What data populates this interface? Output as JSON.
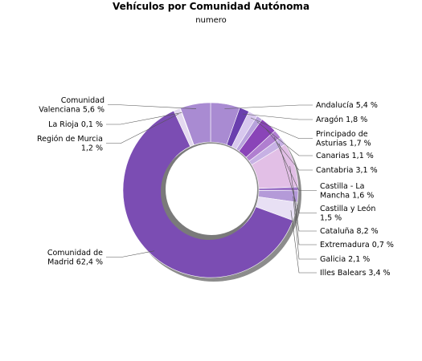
{
  "chart_data": {
    "type": "pie",
    "title": "Vehículos por Comunidad Autónoma",
    "subtitle": "numero",
    "slices": [
      {
        "name": "Andalucía",
        "value": 5.4,
        "label_lines": [
          "Andalucía 5,4 %"
        ],
        "color": "#a98bd2"
      },
      {
        "name": "Aragón",
        "value": 1.8,
        "label_lines": [
          "Aragón 1,8 %"
        ],
        "color": "#6a3fae"
      },
      {
        "name": "Principado de Asturias",
        "value": 1.7,
        "label_lines": [
          "Principado de",
          "Asturias 1,7 %"
        ],
        "color": "#d8c8ee"
      },
      {
        "name": "Canarias",
        "value": 1.1,
        "label_lines": [
          "Canarias 1,1 %"
        ],
        "color": "#b8a2dc"
      },
      {
        "name": "Cantabria",
        "value": 3.1,
        "label_lines": [
          "Cantabria 3,1 %"
        ],
        "color": "#8a44b8"
      },
      {
        "name": "Castilla - La Mancha",
        "value": 1.6,
        "label_lines": [
          "Castilla - La",
          "Mancha 1,6 %"
        ],
        "color": "#b07fd0"
      },
      {
        "name": "Castilla y León",
        "value": 1.5,
        "label_lines": [
          "Castilla y León",
          "1,5 %"
        ],
        "color": "#c7b1e4"
      },
      {
        "name": "Cataluña",
        "value": 8.2,
        "label_lines": [
          "Cataluña 8,2 %"
        ],
        "color": "#e2bfe6"
      },
      {
        "name": "Extremadura",
        "value": 0.7,
        "label_lines": [
          "Extremadura 0,7 %"
        ],
        "color": "#9c74c8"
      },
      {
        "name": "Galicia",
        "value": 2.1,
        "label_lines": [
          "Galicia 2,1 %"
        ],
        "color": "#b49ad8"
      },
      {
        "name": "Illes Balears",
        "value": 3.4,
        "label_lines": [
          "Illes Balears 3,4 %"
        ],
        "color": "#e8e0f4"
      },
      {
        "name": "Comunidad de Madrid",
        "value": 62.4,
        "label_lines": [
          "Comunidad de",
          "Madrid 62,4 %"
        ],
        "color": "#7b4db3"
      },
      {
        "name": "Región de Murcia",
        "value": 1.2,
        "label_lines": [
          "Región de Murcia",
          "1,2 %"
        ],
        "color": "#e4d9f0"
      },
      {
        "name": "La Rioja",
        "value": 0.1,
        "label_lines": [
          "La Rioja 0,1 %"
        ],
        "color": "#8f66c2"
      },
      {
        "name": "Comunidad Valenciana",
        "value": 5.6,
        "label_lines": [
          "Comunidad",
          "Valenciana 5,6 %"
        ],
        "color": "#a98bd2"
      }
    ]
  }
}
